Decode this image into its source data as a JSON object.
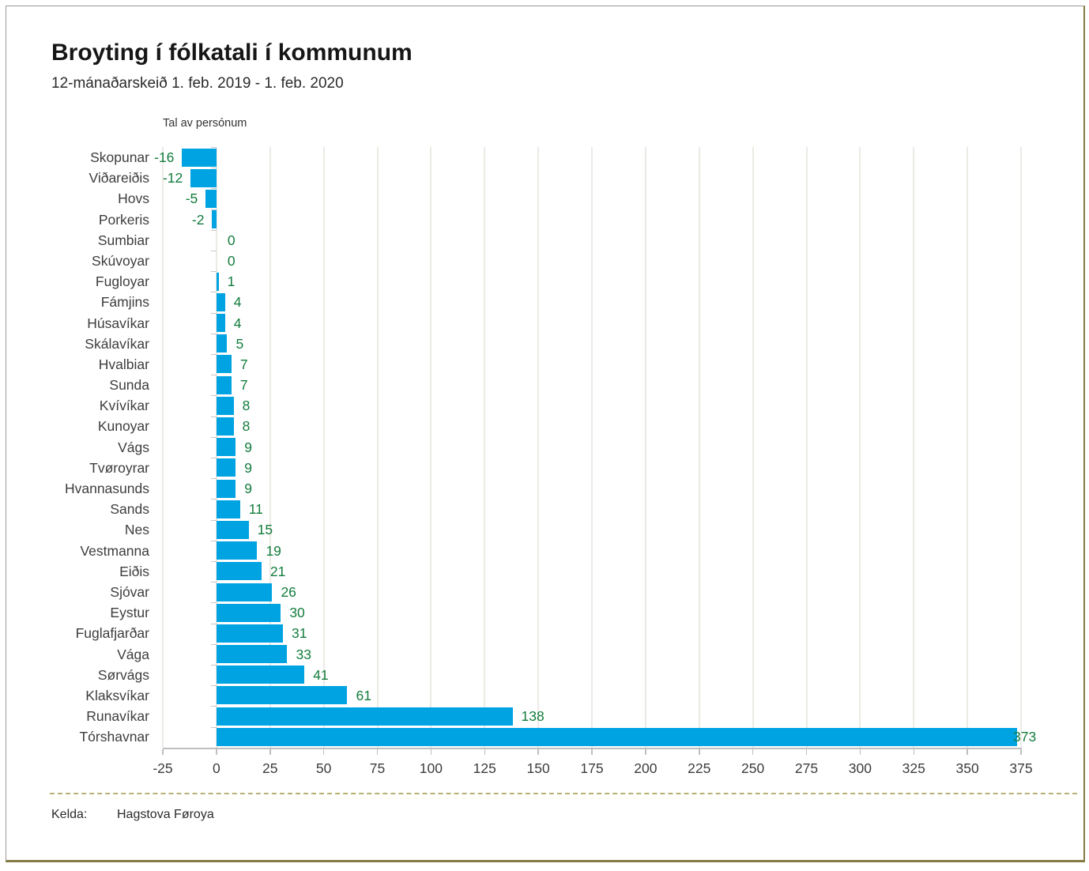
{
  "page": {
    "title": "Broyting í fólkatali í kommunum",
    "subtitle": "12-mánaðarskeið 1. feb. 2019 - 1. feb. 2020",
    "footer": {
      "label": "Kelda:",
      "value": "Hagstova Føroya"
    }
  },
  "chart_data": {
    "type": "bar",
    "orientation": "horizontal",
    "title": "Broyting í fólkatali í kommunum",
    "subtitle": "12-mánaðarskeið 1. feb. 2019 - 1. feb. 2020",
    "axis_title": "Tal av persónum",
    "categories": [
      "Skopunar",
      "Viðareiðis",
      "Hovs",
      "Porkeris",
      "Sumbiar",
      "Skúvoyar",
      "Fugloyar",
      "Fámjins",
      "Húsavíkar",
      "Skálavíkar",
      "Hvalbiar",
      "Sunda",
      "Kvívíkar",
      "Kunoyar",
      "Vágs",
      "Tvøroyrar",
      "Hvannasunds",
      "Sands",
      "Nes",
      "Vestmanna",
      "Eiðis",
      "Sjóvar",
      "Eystur",
      "Fuglafjarðar",
      "Vága",
      "Sørvágs",
      "Klaksvíkar",
      "Runavíkar",
      "Tórshavnar"
    ],
    "values": [
      -16,
      -12,
      -5,
      -2,
      0,
      0,
      1,
      4,
      4,
      5,
      7,
      7,
      8,
      8,
      9,
      9,
      9,
      11,
      15,
      19,
      21,
      26,
      30,
      31,
      33,
      41,
      61,
      138,
      373
    ],
    "xlim": [
      -25,
      375
    ],
    "xticks": [
      -25,
      0,
      25,
      50,
      75,
      100,
      125,
      150,
      175,
      200,
      225,
      250,
      275,
      300,
      325,
      350,
      375
    ],
    "grid": "vertical",
    "legend": "none",
    "colors": {
      "bar": "#00a3e2",
      "value_label": "#137c3d",
      "gridline": "#eceae5",
      "axis_line": "#bfbfbf",
      "text": "#3d3d3d",
      "accent_border": "#857b43"
    },
    "source": "Hagstova Føroya"
  }
}
